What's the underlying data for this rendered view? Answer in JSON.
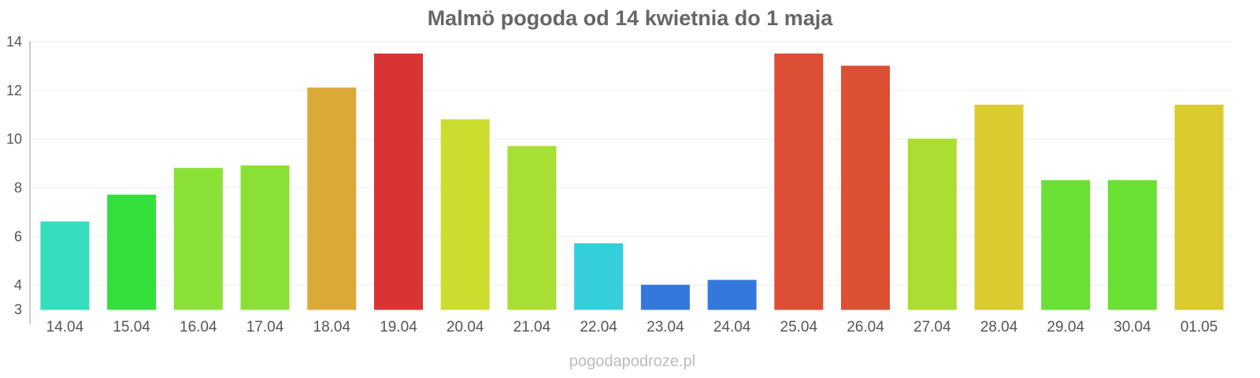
{
  "chart_data": {
    "type": "bar",
    "title": "Malmö pogoda od 14 kwietnia do 1 maja",
    "xlabel": "",
    "ylabel": "",
    "categories": [
      "14.04",
      "15.04",
      "16.04",
      "17.04",
      "18.04",
      "19.04",
      "20.04",
      "21.04",
      "22.04",
      "23.04",
      "24.04",
      "25.04",
      "26.04",
      "27.04",
      "28.04",
      "29.04",
      "30.04",
      "01.05"
    ],
    "values": [
      6.6,
      7.7,
      8.8,
      8.9,
      12.1,
      13.5,
      10.8,
      9.7,
      5.7,
      4.0,
      4.2,
      13.5,
      13.0,
      10.0,
      11.4,
      8.3,
      8.3,
      11.4
    ],
    "colors": [
      "#36dcbd",
      "#33df3a",
      "#8be036",
      "#8be036",
      "#dba936",
      "#d93434",
      "#cddd30",
      "#a8df33",
      "#35cfdb",
      "#3578dc",
      "#3578dc",
      "#dc4f34",
      "#dc5034",
      "#acdd32",
      "#dbca30",
      "#6adf34",
      "#6adf34",
      "#dbca30"
    ],
    "ylim": [
      3,
      14
    ],
    "yticks": [
      3,
      4,
      6,
      8,
      10,
      12,
      14
    ],
    "grid": true,
    "legend": "none"
  },
  "footer": {
    "credit": "pogodapodroze.pl"
  }
}
